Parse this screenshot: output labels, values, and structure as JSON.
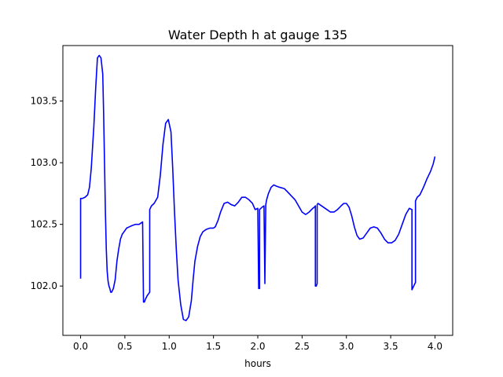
{
  "chart_data": {
    "type": "line",
    "title": "Water Depth h at gauge 135",
    "xlabel": "hours",
    "ylabel": "",
    "xlim": [
      -0.2,
      4.2
    ],
    "ylim": [
      101.6,
      103.95
    ],
    "xticks": [
      0.0,
      0.5,
      1.0,
      1.5,
      2.0,
      2.5,
      3.0,
      3.5,
      4.0
    ],
    "xtick_labels": [
      "0.0",
      "0.5",
      "1.0",
      "1.5",
      "2.0",
      "2.5",
      "3.0",
      "3.5",
      "4.0"
    ],
    "yticks": [
      102.0,
      102.5,
      103.0,
      103.5
    ],
    "ytick_labels": [
      "102.0",
      "102.5",
      "103.0",
      "103.5"
    ],
    "grid": false,
    "series": [
      {
        "color": "#0000ff",
        "x": [
          0.0,
          0.0,
          0.02,
          0.05,
          0.08,
          0.1,
          0.12,
          0.15,
          0.17,
          0.19,
          0.21,
          0.23,
          0.25,
          0.26,
          0.27,
          0.28,
          0.29,
          0.3,
          0.31,
          0.32,
          0.33,
          0.34,
          0.35,
          0.37,
          0.39,
          0.41,
          0.43,
          0.45,
          0.47,
          0.5,
          0.52,
          0.55,
          0.58,
          0.62,
          0.66,
          0.7,
          0.71,
          0.72,
          0.73,
          0.75,
          0.78,
          0.78,
          0.8,
          0.83,
          0.87,
          0.9,
          0.93,
          0.96,
          0.99,
          1.02,
          1.04,
          1.06,
          1.08,
          1.1,
          1.13,
          1.16,
          1.19,
          1.22,
          1.25,
          1.27,
          1.29,
          1.32,
          1.35,
          1.38,
          1.42,
          1.46,
          1.5,
          1.52,
          1.55,
          1.58,
          1.62,
          1.66,
          1.7,
          1.74,
          1.78,
          1.82,
          1.86,
          1.9,
          1.94,
          1.97,
          2.0,
          2.01,
          2.02,
          2.02,
          2.05,
          2.07,
          2.08,
          2.08,
          2.09,
          2.1,
          2.12,
          2.15,
          2.18,
          2.21,
          2.25,
          2.3,
          2.34,
          2.38,
          2.42,
          2.46,
          2.5,
          2.54,
          2.58,
          2.62,
          2.64,
          2.65,
          2.65,
          2.66,
          2.67,
          2.67,
          2.68,
          2.7,
          2.74,
          2.78,
          2.82,
          2.86,
          2.9,
          2.94,
          2.97,
          3.0,
          3.03,
          3.06,
          3.09,
          3.12,
          3.15,
          3.19,
          3.23,
          3.27,
          3.31,
          3.35,
          3.39,
          3.43,
          3.47,
          3.51,
          3.55,
          3.59,
          3.63,
          3.67,
          3.71,
          3.74,
          3.74,
          3.76,
          3.78,
          3.78,
          3.8,
          3.83,
          3.87,
          3.91,
          3.95,
          3.98,
          4.0
        ],
        "values": [
          102.06,
          102.71,
          102.71,
          102.72,
          102.74,
          102.8,
          102.95,
          103.3,
          103.6,
          103.85,
          103.87,
          103.85,
          103.72,
          103.4,
          103.0,
          102.6,
          102.3,
          102.12,
          102.04,
          102.0,
          101.98,
          101.95,
          101.95,
          101.98,
          102.05,
          102.2,
          102.3,
          102.38,
          102.42,
          102.45,
          102.47,
          102.48,
          102.49,
          102.5,
          102.5,
          102.52,
          101.87,
          101.87,
          101.89,
          101.92,
          101.95,
          102.62,
          102.65,
          102.67,
          102.72,
          102.9,
          103.15,
          103.32,
          103.35,
          103.25,
          102.95,
          102.6,
          102.3,
          102.05,
          101.85,
          101.73,
          101.72,
          101.75,
          101.88,
          102.05,
          102.2,
          102.32,
          102.4,
          102.44,
          102.46,
          102.47,
          102.47,
          102.48,
          102.53,
          102.6,
          102.67,
          102.68,
          102.66,
          102.65,
          102.68,
          102.72,
          102.72,
          102.7,
          102.67,
          102.62,
          102.63,
          101.98,
          101.98,
          102.62,
          102.64,
          102.65,
          102.02,
          102.02,
          102.66,
          102.7,
          102.75,
          102.8,
          102.82,
          102.81,
          102.8,
          102.79,
          102.76,
          102.73,
          102.7,
          102.65,
          102.6,
          102.58,
          102.6,
          102.63,
          102.64,
          102.65,
          102.0,
          102.0,
          102.02,
          102.66,
          102.67,
          102.66,
          102.64,
          102.62,
          102.6,
          102.6,
          102.62,
          102.65,
          102.67,
          102.67,
          102.64,
          102.57,
          102.48,
          102.41,
          102.38,
          102.39,
          102.43,
          102.47,
          102.48,
          102.47,
          102.43,
          102.38,
          102.35,
          102.35,
          102.37,
          102.42,
          102.5,
          102.58,
          102.63,
          102.62,
          101.97,
          102.0,
          102.03,
          102.69,
          102.72,
          102.74,
          102.8,
          102.87,
          102.93,
          102.99,
          103.05
        ]
      }
    ]
  }
}
